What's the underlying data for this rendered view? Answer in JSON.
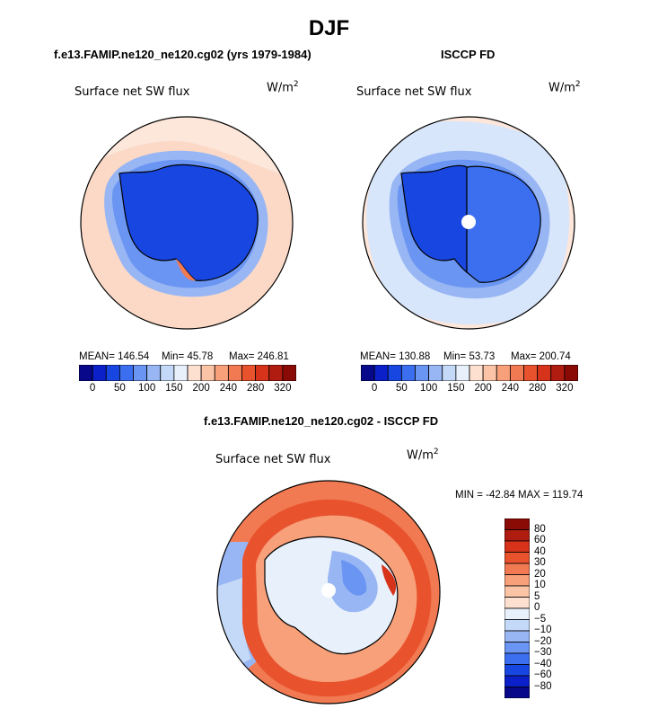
{
  "title": "DJF",
  "panels": {
    "left": {
      "title": "f.e13.FAMIP.ne120_ne120.cg02 (yrs 1979-1984)",
      "variable": "Surface net SW flux",
      "units_base": "W/m",
      "units_exp": "2",
      "stats": {
        "mean": "MEAN= 146.54",
        "min": "Min=  45.78",
        "max": "Max= 246.81"
      }
    },
    "right": {
      "title": "ISCCP FD",
      "variable": "Surface net SW flux",
      "units_base": "W/m",
      "units_exp": "2",
      "stats": {
        "mean": "MEAN= 130.88",
        "min": "Min=  53.73",
        "max": "Max= 200.74"
      }
    },
    "diff": {
      "title": "f.e13.FAMIP.ne120_ne120.cg02 - ISCCP FD",
      "variable": "Surface net SW flux",
      "units_base": "W/m",
      "units_exp": "2",
      "minmax": "MIN = -42.84 MAX = 119.74"
    }
  },
  "abs_colorbar": {
    "colors": [
      "#08088a",
      "#0b20c8",
      "#1846e0",
      "#3c6ff0",
      "#6a95f2",
      "#98b6f4",
      "#c4d8f8",
      "#e8f0fc",
      "#fde0d0",
      "#fbc4a6",
      "#f7a07a",
      "#f17a52",
      "#e8532e",
      "#d6331a",
      "#b01c10",
      "#8a0a06"
    ],
    "ticks": [
      "0",
      "50",
      "100",
      "150",
      "200",
      "240",
      "280",
      "320"
    ]
  },
  "diff_colorbar": {
    "colors": [
      "#8a0a06",
      "#b01c10",
      "#d6331a",
      "#e8532e",
      "#f17a52",
      "#f7a07a",
      "#fbc4a6",
      "#fde0d0",
      "#e8f0fc",
      "#c4d8f8",
      "#98b6f4",
      "#6a95f2",
      "#3c6ff0",
      "#1846e0",
      "#0b20c8",
      "#08088a"
    ],
    "labels": [
      "80",
      "60",
      "40",
      "30",
      "20",
      "10",
      "5",
      "0",
      "−5",
      "−10",
      "−20",
      "−30",
      "−40",
      "−60",
      "−80"
    ]
  },
  "map_colors": {
    "ocean_warm": "#fbd9c6",
    "ocean_light": "#fde6da",
    "ice_ring": "#6a95f2",
    "ice_mid": "#3c6ff0",
    "land_blue": "#1846e0",
    "land_light": "#6a95f2",
    "pale_blue": "#d8e6fb",
    "diff_red": "#e8532e",
    "diff_orange": "#f17a52",
    "diff_light": "#fbc4a6",
    "diff_pale": "#e8f0fc",
    "diff_blue": "#98b6f4"
  }
}
